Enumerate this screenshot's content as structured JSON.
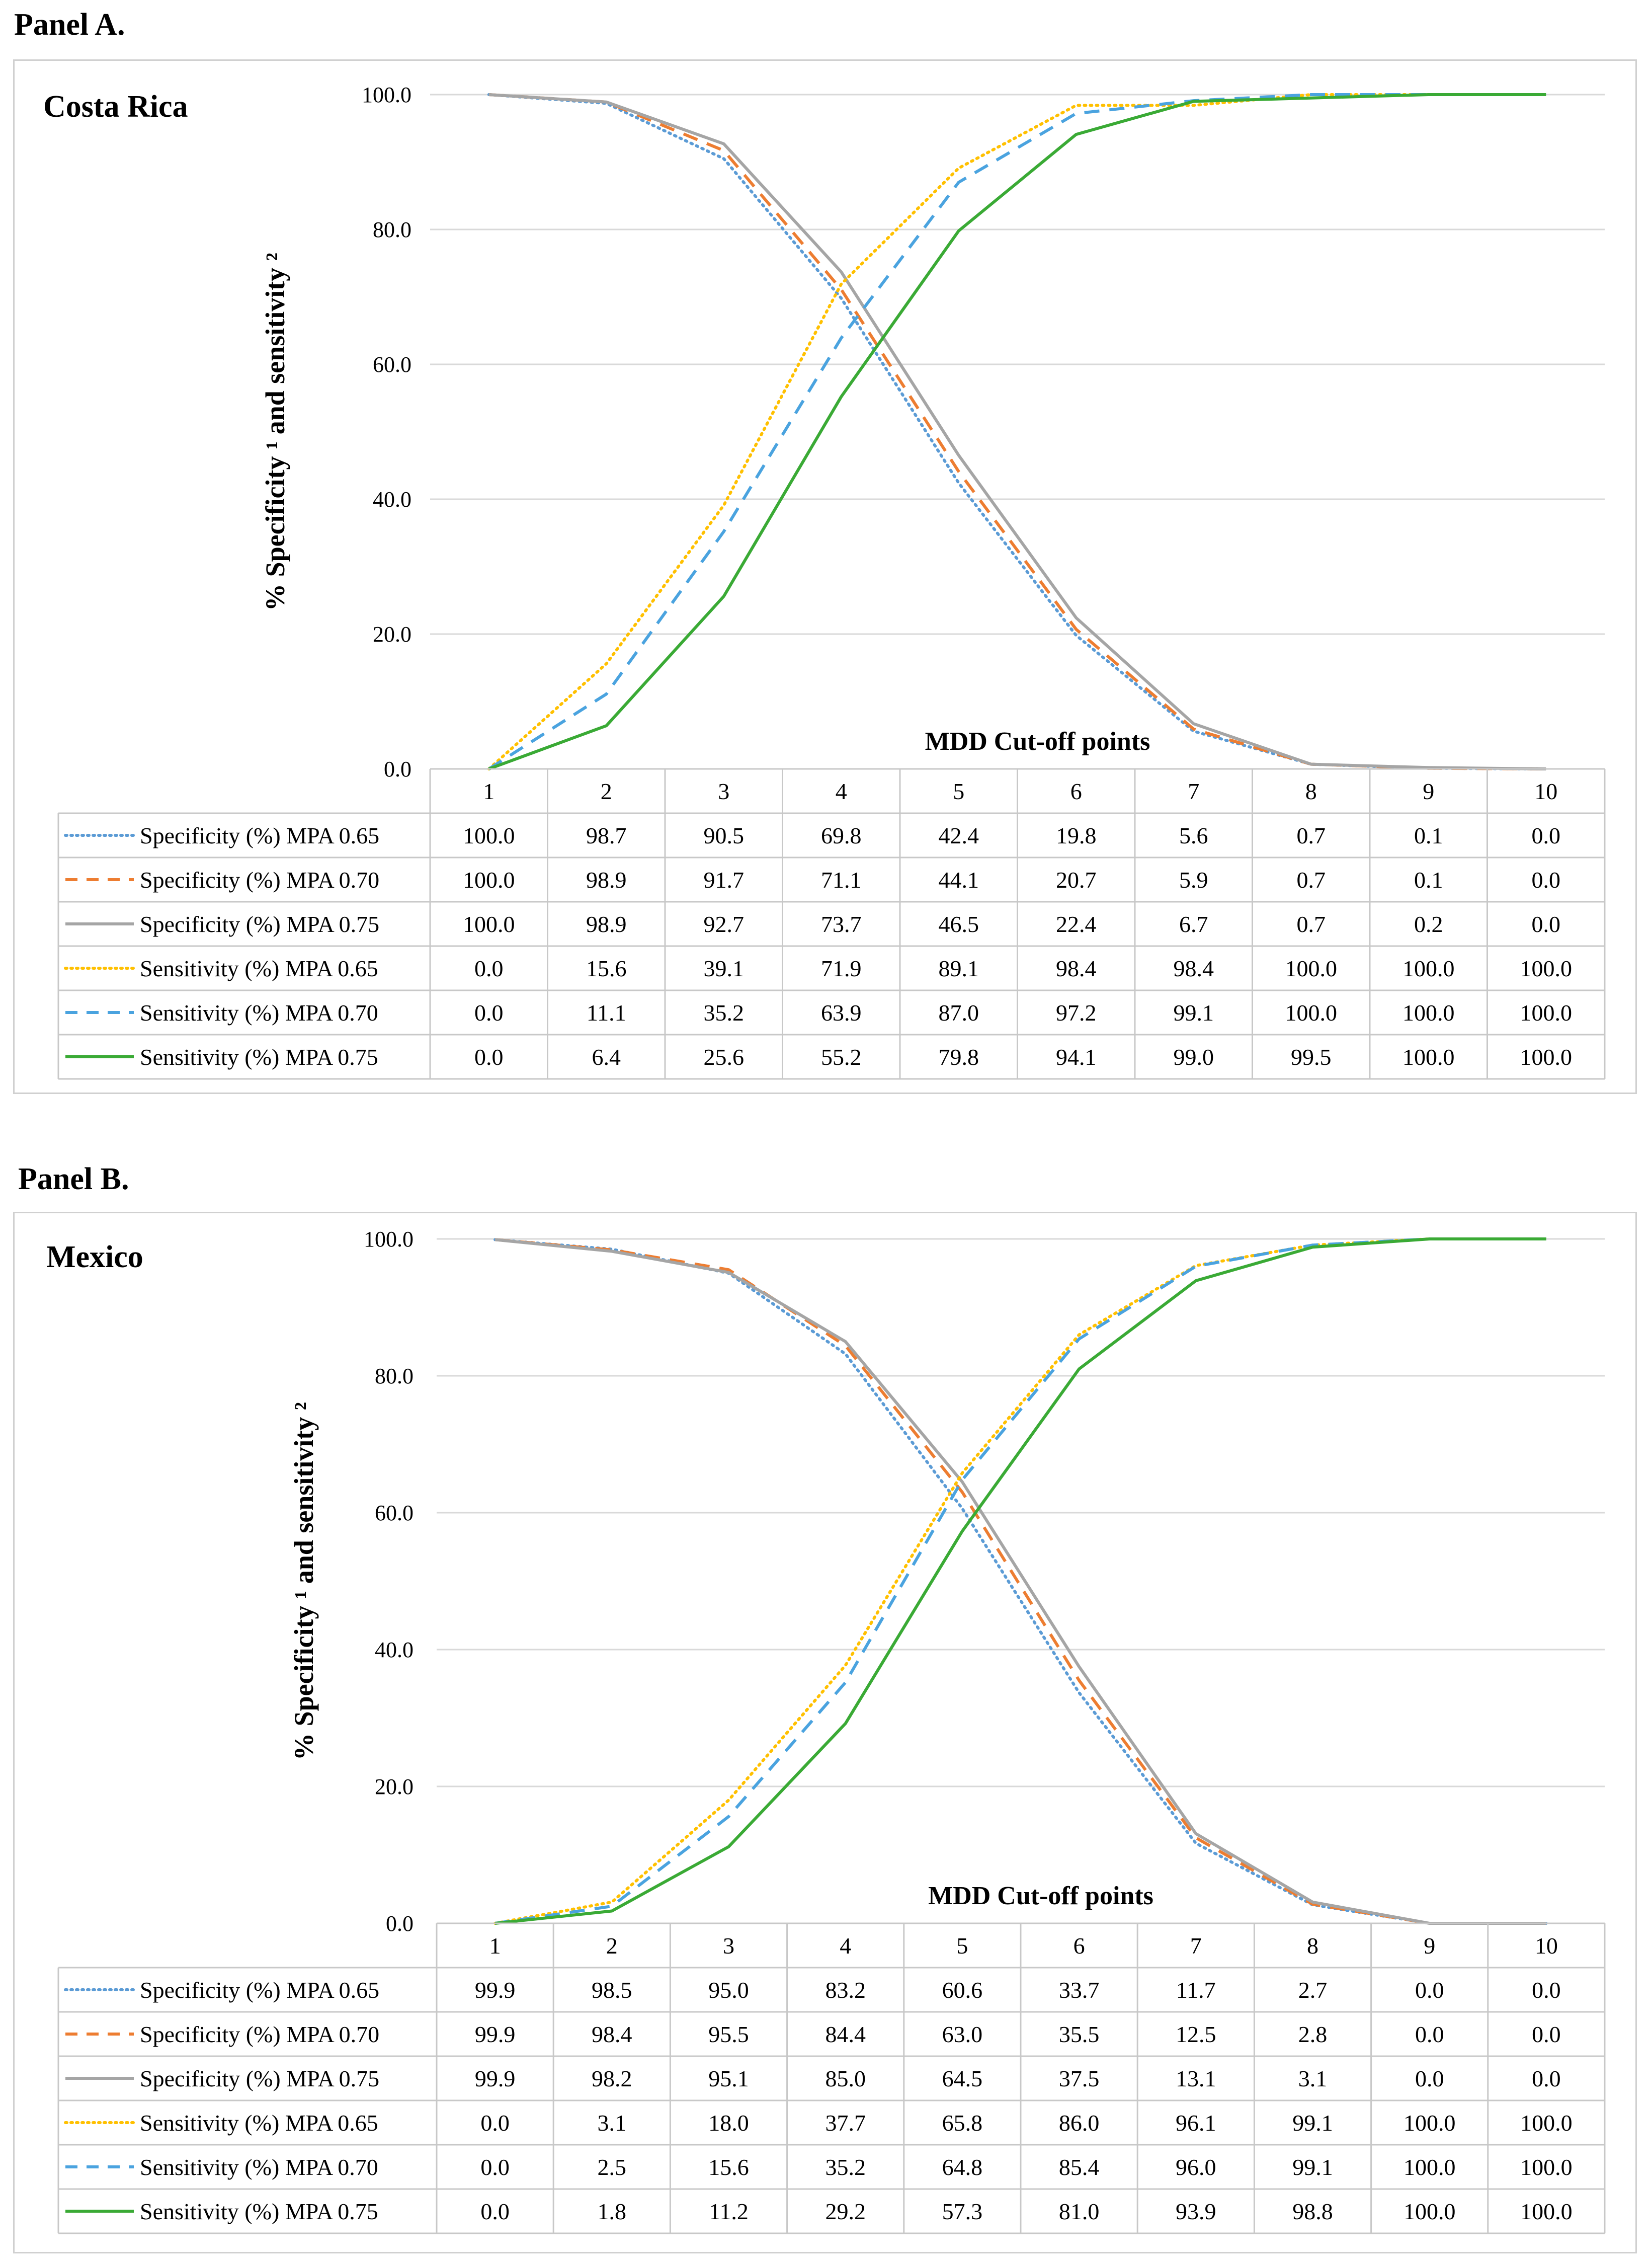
{
  "panels": [
    {
      "panel_label": "Panel A.",
      "country": "Costa Rica"
    },
    {
      "panel_label": "Panel B.",
      "country": "Mexico"
    }
  ],
  "chart_data": [
    {
      "type": "line",
      "title": "Costa Rica",
      "xlabel": "MDD Cut-off points",
      "ylabel": "% Specificity ¹ and sensitivity ²",
      "ylim": [
        0,
        100
      ],
      "yticks": [
        "0.0",
        "20.0",
        "40.0",
        "60.0",
        "80.0",
        "100.0"
      ],
      "categories": [
        "1",
        "2",
        "3",
        "4",
        "5",
        "6",
        "7",
        "8",
        "9",
        "10"
      ],
      "grid": true,
      "legend": "data-table",
      "series": [
        {
          "name": "Specificity (%) MPA 0.65",
          "style": "dotted",
          "color": "#5b9bd5",
          "values": [
            100.0,
            98.7,
            90.5,
            69.8,
            42.4,
            19.8,
            5.6,
            0.7,
            0.1,
            0.0
          ],
          "labels": [
            "100.0",
            "98.7",
            "90.5",
            "69.8",
            "42.4",
            "19.8",
            "5.6",
            "0.7",
            "0.1",
            "0.0"
          ]
        },
        {
          "name": "Specificity (%) MPA 0.70",
          "style": "dashed",
          "color": "#ed7d31",
          "values": [
            100.0,
            98.9,
            91.7,
            71.1,
            44.1,
            20.7,
            5.9,
            0.7,
            0.1,
            0.0
          ],
          "labels": [
            "100.0",
            "98.9",
            "91.7",
            "71.1",
            "44.1",
            "20.7",
            "5.9",
            "0.7",
            "0.1",
            "0.0"
          ]
        },
        {
          "name": "Specificity (%) MPA 0.75",
          "style": "solid",
          "color": "#a5a5a5",
          "values": [
            100.0,
            98.9,
            92.7,
            73.7,
            46.5,
            22.4,
            6.7,
            0.7,
            0.2,
            0.0
          ],
          "labels": [
            "100.0",
            "98.9",
            "92.7",
            "73.7",
            "46.5",
            "22.4",
            "6.7",
            "0.7",
            "0.2",
            "0.0"
          ]
        },
        {
          "name": "Sensitivity (%) MPA 0.65",
          "style": "dotted",
          "color": "#ffc000",
          "values": [
            0.0,
            15.6,
            39.1,
            71.9,
            89.1,
            98.4,
            98.4,
            100.0,
            100.0,
            100.0
          ],
          "labels": [
            "0.0",
            "15.6",
            "39.1",
            "71.9",
            "89.1",
            "98.4",
            "98.4",
            "100.0",
            "100.0",
            "100.0"
          ]
        },
        {
          "name": "Sensitivity (%) MPA 0.70",
          "style": "dashed",
          "color": "#4aa3df",
          "values": [
            0.0,
            11.1,
            35.2,
            63.9,
            87.0,
            97.2,
            99.1,
            100.0,
            100.0,
            100.0
          ],
          "labels": [
            "0.0",
            "11.1",
            "35.2",
            "63.9",
            "87.0",
            "97.2",
            "99.1",
            "100.0",
            "100.0",
            "100.0"
          ]
        },
        {
          "name": "Sensitivity (%) MPA 0.75",
          "style": "solid",
          "color": "#3aaa35",
          "values": [
            0.0,
            6.4,
            25.6,
            55.2,
            79.8,
            94.1,
            99.0,
            99.5,
            100.0,
            100.0
          ],
          "labels": [
            "0.0",
            "6.4",
            "25.6",
            "55.2",
            "79.8",
            "94.1",
            "99.0",
            "99.5",
            "100.0",
            "100.0"
          ]
        }
      ]
    },
    {
      "type": "line",
      "title": "Mexico",
      "xlabel": "MDD Cut-off points",
      "ylabel": "% Specificity ¹ and sensitivity ²",
      "ylim": [
        0,
        100
      ],
      "yticks": [
        "0.0",
        "20.0",
        "40.0",
        "60.0",
        "80.0",
        "100.0"
      ],
      "categories": [
        "1",
        "2",
        "3",
        "4",
        "5",
        "6",
        "7",
        "8",
        "9",
        "10"
      ],
      "grid": true,
      "legend": "data-table",
      "series": [
        {
          "name": "Specificity (%) MPA 0.65",
          "style": "dotted",
          "color": "#5b9bd5",
          "values": [
            99.9,
            98.5,
            95.0,
            83.2,
            60.6,
            33.7,
            11.7,
            2.7,
            0.0,
            0.0
          ],
          "labels": [
            "99.9",
            "98.5",
            "95.0",
            "83.2",
            "60.6",
            "33.7",
            "11.7",
            "2.7",
            "0.0",
            "0.0"
          ]
        },
        {
          "name": "Specificity (%) MPA 0.70",
          "style": "dashed",
          "color": "#ed7d31",
          "values": [
            99.9,
            98.4,
            95.5,
            84.4,
            63.0,
            35.5,
            12.5,
            2.8,
            0.0,
            0.0
          ],
          "labels": [
            "99.9",
            "98.4",
            "95.5",
            "84.4",
            "63.0",
            "35.5",
            "12.5",
            "2.8",
            "0.0",
            "0.0"
          ]
        },
        {
          "name": "Specificity (%) MPA 0.75",
          "style": "solid",
          "color": "#a5a5a5",
          "values": [
            99.9,
            98.2,
            95.1,
            85.0,
            64.5,
            37.5,
            13.1,
            3.1,
            0.0,
            0.0
          ],
          "labels": [
            "99.9",
            "98.2",
            "95.1",
            "85.0",
            "64.5",
            "37.5",
            "13.1",
            "3.1",
            "0.0",
            "0.0"
          ]
        },
        {
          "name": "Sensitivity (%) MPA 0.65",
          "style": "dotted",
          "color": "#ffc000",
          "values": [
            0.0,
            3.1,
            18.0,
            37.7,
            65.8,
            86.0,
            96.1,
            99.1,
            100.0,
            100.0
          ],
          "labels": [
            "0.0",
            "3.1",
            "18.0",
            "37.7",
            "65.8",
            "86.0",
            "96.1",
            "99.1",
            "100.0",
            "100.0"
          ]
        },
        {
          "name": "Sensitivity (%) MPA 0.70",
          "style": "dashed",
          "color": "#4aa3df",
          "values": [
            0.0,
            2.5,
            15.6,
            35.2,
            64.8,
            85.4,
            96.0,
            99.1,
            100.0,
            100.0
          ],
          "labels": [
            "0.0",
            "2.5",
            "15.6",
            "35.2",
            "64.8",
            "85.4",
            "96.0",
            "99.1",
            "100.0",
            "100.0"
          ]
        },
        {
          "name": "Sensitivity (%) MPA 0.75",
          "style": "solid",
          "color": "#3aaa35",
          "values": [
            0.0,
            1.8,
            11.2,
            29.2,
            57.3,
            81.0,
            93.9,
            98.8,
            100.0,
            100.0
          ],
          "labels": [
            "0.0",
            "1.8",
            "11.2",
            "29.2",
            "57.3",
            "81.0",
            "93.9",
            "98.8",
            "100.0",
            "100.0"
          ]
        }
      ]
    }
  ]
}
